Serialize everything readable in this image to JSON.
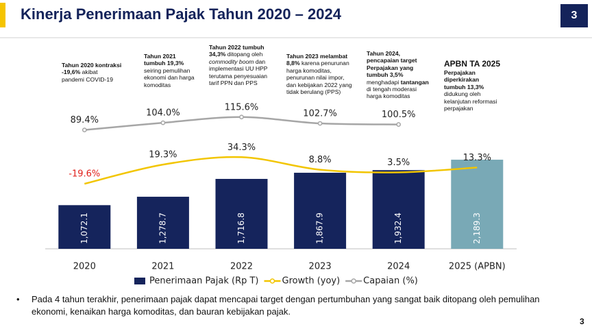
{
  "header": {
    "title": "Kinerja Penerimaan Pajak Tahun 2020 – 2024",
    "page_badge": "3"
  },
  "chart_data": {
    "type": "bar",
    "categories": [
      "2020",
      "2021",
      "2022",
      "2023",
      "2024",
      "2025 (APBN)"
    ],
    "series": [
      {
        "name": "Penerimaan Pajak (Rp T)",
        "type": "bar",
        "colors": [
          "#15245c",
          "#15245c",
          "#15245c",
          "#15245c",
          "#15245c",
          "#79a9b6"
        ],
        "values": [
          1072.1,
          1278.7,
          1716.8,
          1867.9,
          1932.4,
          2189.3
        ],
        "value_labels": [
          "1,072.1",
          "1,278.7",
          "1,716.8",
          "1,867.9",
          "1,932.4",
          "2,189.3"
        ]
      },
      {
        "name": "Growth (yoy)",
        "type": "line",
        "color": "#f2c500",
        "negative_label_color": "#e0201b",
        "values": [
          -19.6,
          19.3,
          34.3,
          8.8,
          3.5,
          13.3
        ],
        "value_labels": [
          "-19.6%",
          "19.3%",
          "34.3%",
          "8.8%",
          "3.5%",
          "13.3%"
        ]
      },
      {
        "name": "Capaian (%)",
        "type": "line",
        "color": "#a6a6a6",
        "values": [
          89.4,
          104.0,
          115.6,
          102.7,
          100.5,
          null
        ],
        "value_labels": [
          "89.4%",
          "104.0%",
          "115.6%",
          "102.7%",
          "100.5%",
          null
        ]
      }
    ],
    "annotations": [
      [
        "Tahun 2020 kontraksi",
        "-19,6%",
        " akibat",
        "pandemi COVID-19"
      ],
      [
        "Tahun 2021",
        "tumbuh 19,3%",
        "seiring pemulihan",
        "ekonomi dan harga",
        "komoditas"
      ],
      [
        "Tahun 2022 tumbuh",
        "34,3%",
        " ditopang oleh",
        "commodity boom",
        " dan",
        "implementasi UU HPP",
        "terutama penyesuaian",
        "tarif PPN dan PPS"
      ],
      [
        "Tahun 2023 melambat",
        "8,8%",
        " karena penurunan",
        "harga komoditas,",
        "penurunan nilai impor,",
        "dan kebijakan 2022 yang",
        "tidak berulang (PPS)"
      ],
      [
        "Tahun 2024,",
        "pencapaian target",
        "Perpajakan yang",
        "tumbuh 3,5%",
        "menghadapi ",
        "tantangan",
        "di tengah moderasi",
        "harga komoditas"
      ],
      [
        "APBN TA 2025",
        "Perpajakan",
        "diperkirakan",
        "tumbuh 13,3%",
        "didukung oleh",
        "kelanjutan reformasi",
        "perpajakan"
      ]
    ]
  },
  "bullet": "Pada 4 tahun terakhir, penerimaan pajak dapat mencapai target dengan pertumbuhan yang sangat baik ditopang oleh pemulihan ekonomi, kenaikan harga komoditas, dan bauran kebijakan pajak.",
  "footer_page": "3"
}
